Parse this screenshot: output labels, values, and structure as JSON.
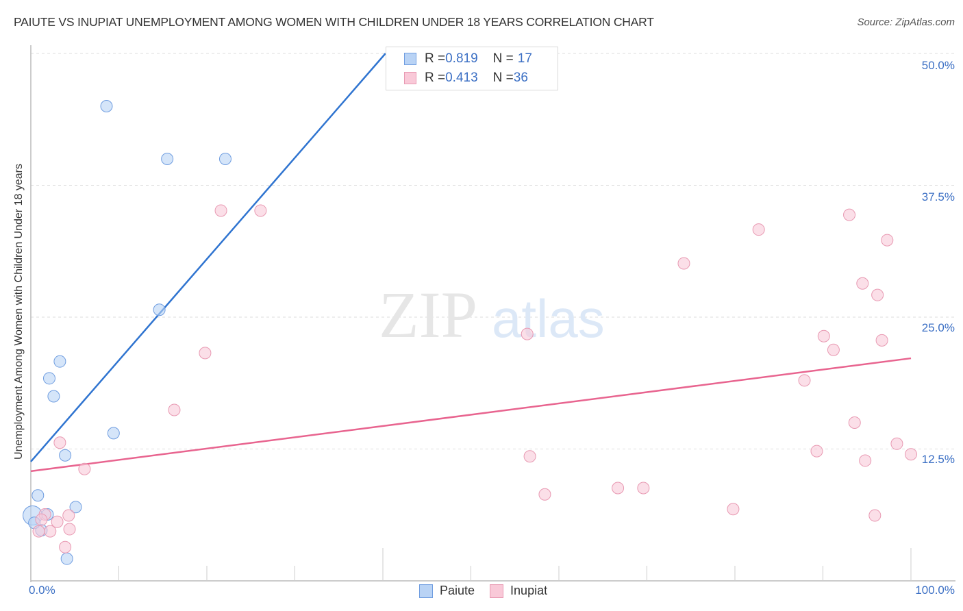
{
  "header": {
    "title": "PAIUTE VS INUPIAT UNEMPLOYMENT AMONG WOMEN WITH CHILDREN UNDER 18 YEARS CORRELATION CHART",
    "source": "Source: ZipAtlas.com"
  },
  "watermark": {
    "zip": "ZIP",
    "atlas": "atlas"
  },
  "axes": {
    "ylabel": "Unemployment Among Women with Children Under 18 years",
    "yticks": [
      "50.0%",
      "37.5%",
      "25.0%",
      "12.5%"
    ],
    "xmin_label": "0.0%",
    "xmax_label": "100.0%"
  },
  "legend": {
    "rows": [
      {
        "r_label": "R = ",
        "r_value": "0.819",
        "n_label": "N = ",
        "n_value": "17"
      },
      {
        "r_label": "R = ",
        "r_value": "0.413",
        "n_label": "N = ",
        "n_value": "36"
      }
    ],
    "series": [
      "Paiute",
      "Inupiat"
    ]
  },
  "colors": {
    "paiute_fill": "#b9d3f5",
    "paiute_stroke": "#6f9de0",
    "paiute_line": "#2f74d0",
    "inupiat_fill": "#f9c9d8",
    "inupiat_stroke": "#e899b2",
    "inupiat_line": "#e8648f",
    "tick_label": "#3b6fc4"
  },
  "chart_data": {
    "type": "scatter",
    "title": "PAIUTE VS INUPIAT UNEMPLOYMENT AMONG WOMEN WITH CHILDREN UNDER 18 YEARS CORRELATION CHART",
    "xlabel": "",
    "ylabel": "Unemployment Among Women with Children Under 18 years",
    "xlim": [
      0,
      100
    ],
    "ylim": [
      0,
      50
    ],
    "yticks": [
      12.5,
      25.0,
      37.5,
      50.0
    ],
    "grid": true,
    "legend_position": "top-center",
    "series": [
      {
        "name": "Paiute",
        "R": 0.819,
        "N": 17,
        "trendline": {
          "x": [
            0,
            40.3
          ],
          "y": [
            11.3,
            50.0
          ]
        },
        "points": [
          [
            8.6,
            45.0
          ],
          [
            15.5,
            40.0
          ],
          [
            22.1,
            40.0
          ],
          [
            14.6,
            25.7
          ],
          [
            3.3,
            20.8
          ],
          [
            2.1,
            19.2
          ],
          [
            2.6,
            17.5
          ],
          [
            9.4,
            14.0
          ],
          [
            3.9,
            11.9
          ],
          [
            0.8,
            8.1
          ],
          [
            5.1,
            7.0
          ],
          [
            1.9,
            6.3
          ],
          [
            1.2,
            4.8
          ],
          [
            4.1,
            2.1
          ],
          [
            0.2,
            6.2
          ],
          [
            45.8,
            49.9
          ],
          [
            0.4,
            5.5
          ]
        ]
      },
      {
        "name": "Inupiat",
        "R": 0.413,
        "N": 36,
        "trendline": {
          "x": [
            0,
            100
          ],
          "y": [
            10.4,
            21.1
          ]
        },
        "points": [
          [
            21.6,
            35.1
          ],
          [
            26.1,
            35.1
          ],
          [
            19.8,
            21.6
          ],
          [
            16.3,
            16.2
          ],
          [
            3.3,
            13.1
          ],
          [
            6.1,
            10.6
          ],
          [
            56.4,
            23.4
          ],
          [
            56.7,
            11.8
          ],
          [
            58.4,
            8.2
          ],
          [
            66.7,
            8.8
          ],
          [
            69.6,
            8.8
          ],
          [
            74.2,
            30.1
          ],
          [
            79.8,
            6.8
          ],
          [
            82.7,
            33.3
          ],
          [
            87.9,
            19.0
          ],
          [
            90.1,
            23.2
          ],
          [
            91.2,
            21.9
          ],
          [
            89.3,
            12.3
          ],
          [
            93.0,
            34.7
          ],
          [
            94.5,
            28.2
          ],
          [
            93.6,
            15.0
          ],
          [
            94.8,
            11.4
          ],
          [
            96.2,
            27.1
          ],
          [
            96.7,
            22.8
          ],
          [
            97.3,
            32.3
          ],
          [
            98.4,
            13.0
          ],
          [
            100.0,
            12.0
          ],
          [
            95.9,
            6.2
          ],
          [
            1.6,
            6.3
          ],
          [
            3.0,
            5.6
          ],
          [
            4.3,
            6.2
          ],
          [
            0.9,
            4.7
          ],
          [
            2.2,
            4.7
          ],
          [
            4.4,
            4.9
          ],
          [
            3.9,
            3.2
          ],
          [
            1.2,
            5.8
          ]
        ]
      }
    ]
  }
}
